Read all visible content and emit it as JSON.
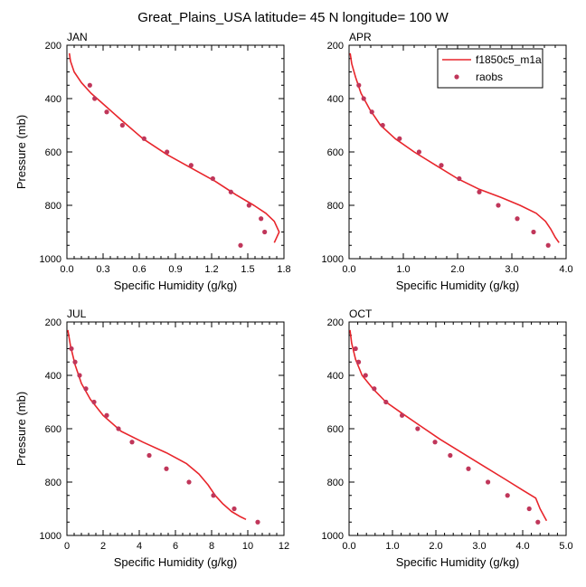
{
  "title": "Great_Plains_USA  latitude= 45 N longitude= 100 W",
  "legend": {
    "model_label": "f1850c5_m1a",
    "obs_label": "raobs",
    "model_color": "#e8252b",
    "obs_color": "#c0365a"
  },
  "chart_data": [
    {
      "type": "line",
      "panel": "JAN",
      "title": "JAN",
      "xlabel": "Specific Humidity (g/kg)",
      "ylabel": "Pressure (mb)",
      "xlim": [
        0,
        1.8
      ],
      "xticks": [
        0.0,
        0.3,
        0.6,
        0.9,
        1.2,
        1.5,
        1.8
      ],
      "xtick_labels": [
        "0.0",
        "0.3",
        "0.6",
        "0.9",
        "1.2",
        "1.5",
        "1.8"
      ],
      "ylim": [
        1000,
        200
      ],
      "yticks": [
        200,
        400,
        600,
        800,
        1000
      ],
      "ytick_labels": [
        "200",
        "400",
        "600",
        "800",
        "1000"
      ],
      "series": [
        {
          "name": "f1850c5_m1a",
          "kind": "line",
          "x": [
            0.02,
            0.03,
            0.06,
            0.12,
            0.2,
            0.3,
            0.45,
            0.63,
            0.83,
            1.03,
            1.23,
            1.4,
            1.55,
            1.65,
            1.72,
            1.76,
            1.74,
            1.72
          ],
          "y": [
            230,
            260,
            300,
            340,
            380,
            420,
            480,
            550,
            610,
            660,
            710,
            760,
            800,
            830,
            860,
            900,
            920,
            940
          ]
        },
        {
          "name": "raobs",
          "kind": "scatter",
          "x": [
            0.19,
            0.23,
            0.33,
            0.46,
            0.64,
            0.83,
            1.03,
            1.21,
            1.36,
            1.51,
            1.61,
            1.64,
            1.44
          ],
          "y": [
            350,
            400,
            450,
            500,
            550,
            600,
            650,
            700,
            750,
            800,
            850,
            900,
            950
          ]
        }
      ]
    },
    {
      "type": "line",
      "panel": "APR",
      "title": "APR",
      "xlabel": "Specific Humidity (g/kg)",
      "ylabel": "",
      "xlim": [
        0,
        4.0
      ],
      "xticks": [
        0.0,
        1.0,
        2.0,
        3.0,
        4.0
      ],
      "xtick_labels": [
        "0.0",
        "1.0",
        "2.0",
        "3.0",
        "4.0"
      ],
      "ylim": [
        1000,
        200
      ],
      "yticks": [
        200,
        400,
        600,
        800,
        1000
      ],
      "ytick_labels": [
        "200",
        "400",
        "600",
        "800",
        "1000"
      ],
      "series": [
        {
          "name": "f1850c5_m1a",
          "kind": "line",
          "x": [
            0.02,
            0.05,
            0.12,
            0.22,
            0.38,
            0.58,
            0.85,
            1.2,
            1.6,
            2.0,
            2.4,
            2.8,
            3.15,
            3.45,
            3.62,
            3.72,
            3.8,
            3.87
          ],
          "y": [
            230,
            270,
            320,
            380,
            440,
            500,
            550,
            600,
            650,
            700,
            740,
            770,
            800,
            830,
            860,
            890,
            920,
            940
          ]
        },
        {
          "name": "raobs",
          "kind": "scatter",
          "x": [
            0.18,
            0.27,
            0.42,
            0.62,
            0.93,
            1.29,
            1.7,
            2.03,
            2.4,
            2.75,
            3.1,
            3.4,
            3.67
          ],
          "y": [
            350,
            400,
            450,
            500,
            550,
            600,
            650,
            700,
            750,
            800,
            850,
            900,
            950
          ]
        }
      ]
    },
    {
      "type": "line",
      "panel": "JUL",
      "title": "JUL",
      "xlabel": "Specific Humidity (g/kg)",
      "ylabel": "Pressure (mb)",
      "xlim": [
        0,
        12
      ],
      "xticks": [
        0,
        2,
        4,
        6,
        8,
        10,
        12
      ],
      "xtick_labels": [
        "0",
        "2",
        "4",
        "6",
        "8",
        "10",
        "12"
      ],
      "ylim": [
        1000,
        200
      ],
      "yticks": [
        200,
        400,
        600,
        800,
        1000
      ],
      "ytick_labels": [
        "200",
        "400",
        "600",
        "800",
        "1000"
      ],
      "series": [
        {
          "name": "f1850c5_m1a",
          "kind": "line",
          "x": [
            0.05,
            0.2,
            0.45,
            0.8,
            1.3,
            2.0,
            3.0,
            4.2,
            5.5,
            6.6,
            7.3,
            7.8,
            8.2,
            8.6,
            9.1,
            9.6,
            9.9
          ],
          "y": [
            230,
            290,
            360,
            430,
            490,
            550,
            610,
            650,
            690,
            730,
            770,
            810,
            850,
            880,
            910,
            930,
            940
          ]
        },
        {
          "name": "raobs",
          "kind": "scatter",
          "x": [
            0.25,
            0.45,
            0.7,
            1.05,
            1.5,
            2.2,
            2.85,
            3.6,
            4.55,
            5.5,
            6.75,
            8.1,
            9.25,
            10.55
          ],
          "y": [
            300,
            350,
            400,
            450,
            500,
            550,
            600,
            650,
            700,
            750,
            800,
            850,
            900,
            950
          ]
        }
      ]
    },
    {
      "type": "line",
      "panel": "OCT",
      "title": "OCT",
      "xlabel": "Specific Humidity (g/kg)",
      "ylabel": "",
      "xlim": [
        0,
        5.0
      ],
      "xticks": [
        0.0,
        1.0,
        2.0,
        3.0,
        4.0,
        5.0
      ],
      "xtick_labels": [
        "0.0",
        "1.0",
        "2.0",
        "3.0",
        "4.0",
        "5.0"
      ],
      "ylim": [
        1000,
        200
      ],
      "yticks": [
        200,
        400,
        600,
        800,
        1000
      ],
      "ytick_labels": [
        "200",
        "400",
        "600",
        "800",
        "1000"
      ],
      "series": [
        {
          "name": "f1850c5_m1a",
          "kind": "line",
          "x": [
            0.02,
            0.06,
            0.15,
            0.3,
            0.55,
            0.85,
            1.2,
            1.65,
            2.1,
            2.6,
            3.1,
            3.6,
            4.0,
            4.3,
            4.4,
            4.5,
            4.55
          ],
          "y": [
            230,
            280,
            340,
            400,
            450,
            500,
            540,
            590,
            640,
            690,
            740,
            790,
            830,
            860,
            900,
            930,
            945
          ]
        },
        {
          "name": "raobs",
          "kind": "scatter",
          "x": [
            0.15,
            0.22,
            0.38,
            0.58,
            0.85,
            1.22,
            1.58,
            1.98,
            2.33,
            2.75,
            3.2,
            3.65,
            4.15,
            4.35
          ],
          "y": [
            300,
            350,
            400,
            450,
            500,
            550,
            600,
            650,
            700,
            750,
            800,
            850,
            900,
            950
          ]
        }
      ]
    }
  ]
}
